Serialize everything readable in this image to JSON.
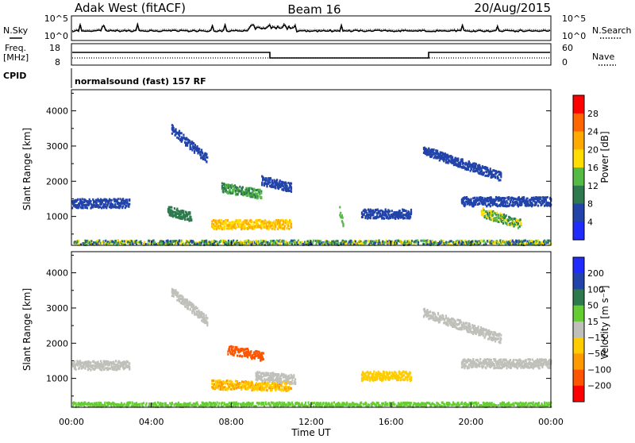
{
  "header": {
    "station": "Adak West (fitACF)",
    "beam": "Beam 16",
    "date": "20/Aug/2015"
  },
  "aux_labels": {
    "nsky": "N.Sky",
    "freq_line1": "Freq.",
    "freq_line2": "[MHz]",
    "cpid": "CPID",
    "nsearch": "N.Search",
    "nave": "Nave",
    "noise_top": "10^5",
    "noise_bottom": "10^0",
    "freq_top": "18",
    "freq_bottom": "8",
    "nave_top": "60",
    "nave_bottom": "0",
    "program": "normalsound (fast) 157 RF"
  },
  "colors": {
    "power": [
      "#1f2bff",
      "#2244aa",
      "#2e7a4e",
      "#55bb44",
      "#ffdd00",
      "#ffaa00",
      "#ff6600",
      "#ff0000"
    ],
    "velocity": [
      "#1f2bff",
      "#2244aa",
      "#2e7a4e",
      "#66cc33",
      "#c0c0bb",
      "#ffcc00",
      "#ff9900",
      "#ff5500",
      "#ff0000"
    ]
  },
  "chart_data": [
    {
      "type": "heatmap",
      "panel": "power",
      "xlabel": "Time UT",
      "ylabel": "Slant Range [km]",
      "xlim": [
        0,
        24
      ],
      "ylim": [
        180,
        4600
      ],
      "yticks": [
        1000,
        2000,
        3000,
        4000
      ],
      "colorbar": {
        "label": "Power [dB]",
        "ticks": [
          "4",
          "8",
          "12",
          "16",
          "20",
          "24",
          "28"
        ],
        "range": [
          0,
          30
        ]
      },
      "features": [
        {
          "t": [
            5.0,
            6.8
          ],
          "range": [
            3500,
            2650
          ],
          "values": [
            4,
            8
          ]
        },
        {
          "t": [
            0.0,
            2.9
          ],
          "range": [
            1400,
            1400
          ],
          "values": [
            4,
            8
          ]
        },
        {
          "t": [
            4.8,
            6.0
          ],
          "range": [
            1200,
            1000
          ],
          "values": [
            8,
            12
          ]
        },
        {
          "t": [
            7.5,
            9.5
          ],
          "range": [
            1850,
            1650
          ],
          "values": [
            8,
            16
          ]
        },
        {
          "t": [
            7.0,
            11.0
          ],
          "range": [
            800,
            800
          ],
          "values": [
            16,
            24
          ]
        },
        {
          "t": [
            9.5,
            11.0
          ],
          "range": [
            2050,
            1850
          ],
          "values": [
            4,
            8
          ]
        },
        {
          "t": [
            13.4,
            13.6
          ],
          "range": [
            1200,
            800
          ],
          "values": [
            12,
            16
          ]
        },
        {
          "t": [
            14.5,
            17.0
          ],
          "range": [
            1100,
            1100
          ],
          "values": [
            4,
            8
          ]
        },
        {
          "t": [
            17.6,
            21.5
          ],
          "range": [
            2900,
            2150
          ],
          "values": [
            4,
            8
          ]
        },
        {
          "t": [
            19.5,
            24.0
          ],
          "range": [
            1450,
            1450
          ],
          "values": [
            4,
            8
          ]
        },
        {
          "t": [
            20.5,
            22.5
          ],
          "range": [
            1150,
            800
          ],
          "values": [
            8,
            20
          ]
        },
        {
          "t": [
            0.0,
            24.0
          ],
          "range": [
            250,
            250
          ],
          "values": [
            4,
            20
          ]
        }
      ]
    },
    {
      "type": "heatmap",
      "panel": "velocity",
      "xlabel": "Time UT",
      "ylabel": "Slant Range [km]",
      "xlim": [
        0,
        24
      ],
      "ylim": [
        180,
        4600
      ],
      "yticks": [
        1000,
        2000,
        3000,
        4000
      ],
      "xticks": [
        "00:00",
        "04:00",
        "08:00",
        "12:00",
        "16:00",
        "20:00",
        "00:00"
      ],
      "colorbar": {
        "label": "Velocity [m s⁻¹]",
        "ticks": [
          "200",
          "100",
          "50",
          "15",
          "−15",
          "−50",
          "−100",
          "−200"
        ],
        "range": [
          -250,
          250
        ]
      },
      "features": [
        {
          "t": [
            5.0,
            6.8
          ],
          "range": [
            3500,
            2650
          ],
          "values": [
            -15,
            15
          ]
        },
        {
          "t": [
            0.0,
            2.9
          ],
          "range": [
            1400,
            1400
          ],
          "values": [
            -15,
            15
          ]
        },
        {
          "t": [
            7.8,
            9.6
          ],
          "range": [
            1850,
            1650
          ],
          "values": [
            -200,
            -100
          ]
        },
        {
          "t": [
            7.0,
            11.0
          ],
          "range": [
            850,
            800
          ],
          "values": [
            -60,
            -30
          ]
        },
        {
          "t": [
            9.2,
            11.2
          ],
          "range": [
            1100,
            1000
          ],
          "values": [
            -15,
            15
          ]
        },
        {
          "t": [
            14.5,
            17.0
          ],
          "range": [
            1100,
            1100
          ],
          "values": [
            -40,
            -15
          ]
        },
        {
          "t": [
            17.6,
            21.5
          ],
          "range": [
            2900,
            2150
          ],
          "values": [
            -15,
            15
          ]
        },
        {
          "t": [
            19.5,
            24.0
          ],
          "range": [
            1450,
            1450
          ],
          "values": [
            -15,
            15
          ]
        },
        {
          "t": [
            0.0,
            24.0
          ],
          "range": [
            250,
            250
          ],
          "values": [
            15,
            50
          ]
        }
      ]
    }
  ]
}
